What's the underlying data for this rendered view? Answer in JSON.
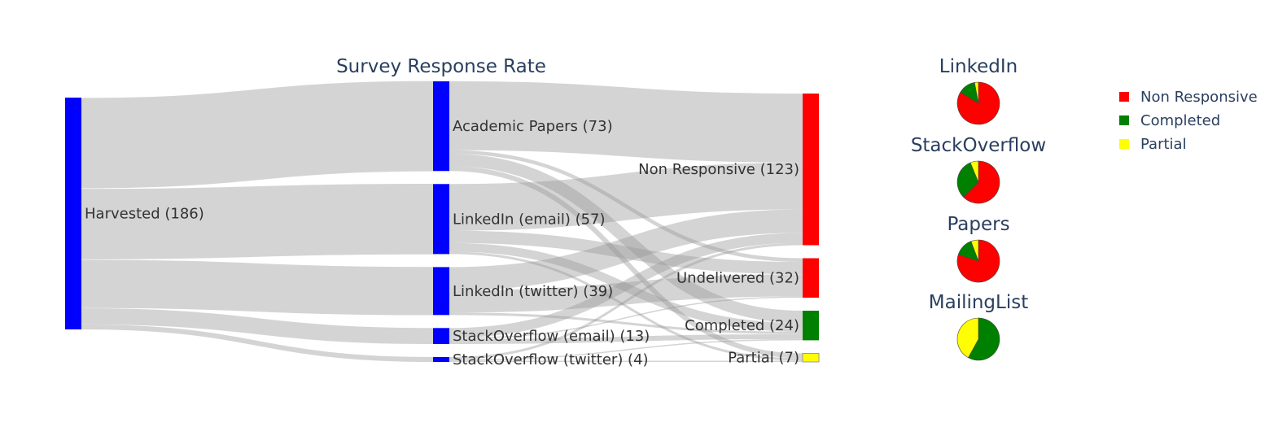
{
  "chart_data": [
    {
      "type": "sankey",
      "title": "Survey Response Rate",
      "link_color": "#999999",
      "nodes": [
        {
          "id": "harvested",
          "label": "Harvested (186)",
          "value": 186,
          "color": "#0000ff",
          "column": 0
        },
        {
          "id": "academic",
          "label": "Academic Papers (73)",
          "value": 73,
          "color": "#0000ff",
          "column": 1
        },
        {
          "id": "li_email",
          "label": "LinkedIn (email) (57)",
          "value": 57,
          "color": "#0000ff",
          "column": 1
        },
        {
          "id": "li_twitter",
          "label": "LinkedIn (twitter) (39)",
          "value": 39,
          "color": "#0000ff",
          "column": 1
        },
        {
          "id": "so_email",
          "label": "StackOverflow (email) (13)",
          "value": 13,
          "color": "#0000ff",
          "column": 1
        },
        {
          "id": "so_twitter",
          "label": "StackOverflow (twitter) (4)",
          "value": 4,
          "color": "#0000ff",
          "column": 1
        },
        {
          "id": "nonresp",
          "label": "Non Responsive (123)",
          "value": 123,
          "color": "#ff0000",
          "column": 2
        },
        {
          "id": "undelivered",
          "label": "Undelivered (32)",
          "value": 32,
          "color": "#ff0000",
          "column": 2
        },
        {
          "id": "completed",
          "label": "Completed (24)",
          "value": 24,
          "color": "#008000",
          "column": 2
        },
        {
          "id": "partial",
          "label": "Partial (7)",
          "value": 7,
          "color": "#ffff00",
          "column": 2
        }
      ],
      "links": [
        {
          "source": "harvested",
          "target": "academic",
          "value": 73
        },
        {
          "source": "harvested",
          "target": "li_email",
          "value": 57
        },
        {
          "source": "harvested",
          "target": "li_twitter",
          "value": 39
        },
        {
          "source": "harvested",
          "target": "so_email",
          "value": 13
        },
        {
          "source": "harvested",
          "target": "so_twitter",
          "value": 4
        },
        {
          "source": "academic",
          "target": "nonresp",
          "value": 56
        },
        {
          "source": "academic",
          "target": "undelivered",
          "value": 3
        },
        {
          "source": "academic",
          "target": "completed",
          "value": 10
        },
        {
          "source": "academic",
          "target": "partial",
          "value": 4
        },
        {
          "source": "li_email",
          "target": "nonresp",
          "value": 38
        },
        {
          "source": "li_email",
          "target": "undelivered",
          "value": 10
        },
        {
          "source": "li_email",
          "target": "completed",
          "value": 7
        },
        {
          "source": "li_email",
          "target": "partial",
          "value": 2
        },
        {
          "source": "li_twitter",
          "target": "nonresp",
          "value": 19
        },
        {
          "source": "li_twitter",
          "target": "undelivered",
          "value": 18
        },
        {
          "source": "li_twitter",
          "target": "completed",
          "value": 2
        },
        {
          "source": "so_email",
          "target": "nonresp",
          "value": 8
        },
        {
          "source": "so_email",
          "target": "undelivered",
          "value": 1
        },
        {
          "source": "so_email",
          "target": "completed",
          "value": 4
        },
        {
          "source": "so_twitter",
          "target": "nonresp",
          "value": 2
        },
        {
          "source": "so_twitter",
          "target": "completed",
          "value": 1
        },
        {
          "source": "so_twitter",
          "target": "partial",
          "value": 1
        }
      ]
    },
    {
      "type": "pie",
      "title": "LinkedIn",
      "slices": [
        {
          "name": "Non Responsive",
          "value": 57,
          "color": "#ff0000"
        },
        {
          "name": "Completed",
          "value": 9,
          "color": "#008000"
        },
        {
          "name": "Partial",
          "value": 2,
          "color": "#ffff00"
        }
      ]
    },
    {
      "type": "pie",
      "title": "StackOverflow",
      "slices": [
        {
          "name": "Non Responsive",
          "value": 10,
          "color": "#ff0000"
        },
        {
          "name": "Completed",
          "value": 5,
          "color": "#008000"
        },
        {
          "name": "Partial",
          "value": 1,
          "color": "#ffff00"
        }
      ]
    },
    {
      "type": "pie",
      "title": "Papers",
      "slices": [
        {
          "name": "Non Responsive",
          "value": 56,
          "color": "#ff0000"
        },
        {
          "name": "Completed",
          "value": 10,
          "color": "#008000"
        },
        {
          "name": "Partial",
          "value": 4,
          "color": "#ffff00"
        }
      ]
    },
    {
      "type": "pie",
      "title": "MailingList",
      "slices": [
        {
          "name": "Non Responsive",
          "value": 0,
          "color": "#ff0000"
        },
        {
          "name": "Completed",
          "value": 58,
          "color": "#008000"
        },
        {
          "name": "Partial",
          "value": 42,
          "color": "#ffff00"
        }
      ]
    }
  ],
  "legend": {
    "placement": "top-right",
    "items": [
      {
        "name": "Non Responsive",
        "color": "#ff0000"
      },
      {
        "name": "Completed",
        "color": "#008000"
      },
      {
        "name": "Partial",
        "color": "#ffff00"
      }
    ]
  }
}
